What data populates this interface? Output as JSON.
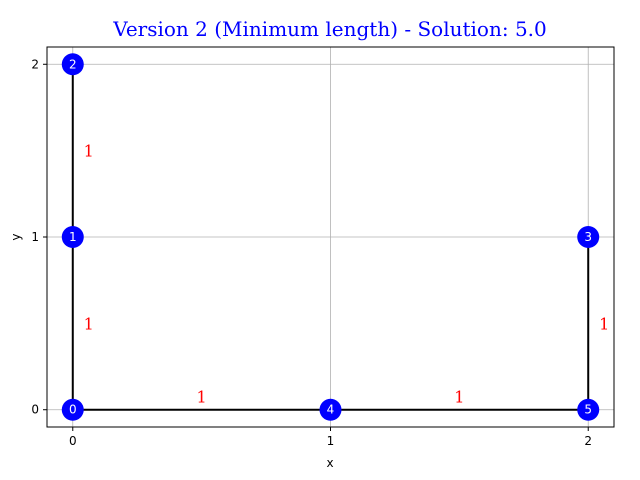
{
  "chart_data": {
    "type": "scatter",
    "title": "Version 2 (Minimum length) - Solution: 5.0",
    "xlabel": "x",
    "ylabel": "y",
    "xlim": [
      -0.1,
      2.1
    ],
    "ylim": [
      -0.1,
      2.1
    ],
    "xticks": [
      0,
      1,
      2
    ],
    "yticks": [
      0,
      1,
      2
    ],
    "xtick_labels": [
      "0",
      "1",
      "2"
    ],
    "ytick_labels": [
      "0",
      "1",
      "2"
    ],
    "grid": true,
    "nodes": [
      {
        "id": "0",
        "x": 0,
        "y": 0
      },
      {
        "id": "1",
        "x": 0,
        "y": 1
      },
      {
        "id": "2",
        "x": 0,
        "y": 2
      },
      {
        "id": "3",
        "x": 2,
        "y": 1
      },
      {
        "id": "4",
        "x": 1,
        "y": 0
      },
      {
        "id": "5",
        "x": 2,
        "y": 0
      }
    ],
    "edges": [
      {
        "from": "0",
        "to": "1",
        "weight": "1"
      },
      {
        "from": "1",
        "to": "2",
        "weight": "1"
      },
      {
        "from": "0",
        "to": "4",
        "weight": "1"
      },
      {
        "from": "4",
        "to": "5",
        "weight": "1"
      },
      {
        "from": "5",
        "to": "3",
        "weight": "1"
      }
    ],
    "colors": {
      "title": "#0000ff",
      "node": "#0000ff",
      "node_label": "#ffffff",
      "edge": "#000000",
      "edge_label": "#ff0000",
      "grid": "#b0b0b0"
    }
  }
}
